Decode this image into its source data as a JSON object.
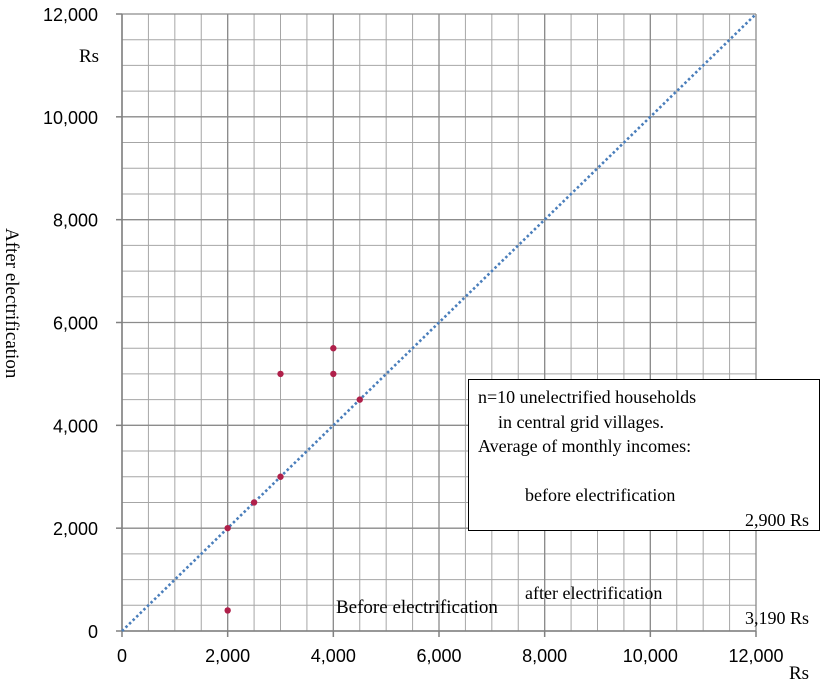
{
  "chart_data": {
    "type": "scatter",
    "xlabel": "Before electrification",
    "ylabel": "After electrification",
    "x_unit": "Rs",
    "y_unit": "Rs",
    "xlim": [
      0,
      12000
    ],
    "ylim": [
      0,
      12000
    ],
    "x_ticks": [
      "0",
      "2,000",
      "4,000",
      "6,000",
      "8,000",
      "10,000",
      "12,000"
    ],
    "y_ticks": [
      "0",
      "2,000",
      "4,000",
      "6,000",
      "8,000",
      "10,000",
      "12,000"
    ],
    "x_tick_values": [
      0,
      2000,
      4000,
      6000,
      8000,
      10000,
      12000
    ],
    "y_tick_values": [
      0,
      2000,
      4000,
      6000,
      8000,
      10000,
      12000
    ],
    "grid": true,
    "minor_grid_step": 500,
    "points": [
      {
        "x": 2000,
        "y": 400
      },
      {
        "x": 2000,
        "y": 2000
      },
      {
        "x": 2500,
        "y": 2500
      },
      {
        "x": 3000,
        "y": 3000
      },
      {
        "x": 3000,
        "y": 5000
      },
      {
        "x": 4000,
        "y": 5000
      },
      {
        "x": 4000,
        "y": 5500
      },
      {
        "x": 4500,
        "y": 4500
      }
    ],
    "reference_line": {
      "style": "dotted",
      "from": [
        0,
        0
      ],
      "to": [
        12000,
        12000
      ]
    },
    "annotation": {
      "line1": "n=10 unelectrified households",
      "line2": "in central grid villages.",
      "line3": "Average of monthly incomes:",
      "line4_label": "before electrification",
      "line4_value": "2,900 Rs",
      "line5_label": "after electrification",
      "line5_value": "3,190 Rs"
    },
    "legend_position": "right",
    "colors": {
      "points": "#b0204a",
      "reference_line": "#4a7ebb",
      "grid": "#a6a6a6",
      "axes": "#808080"
    }
  }
}
